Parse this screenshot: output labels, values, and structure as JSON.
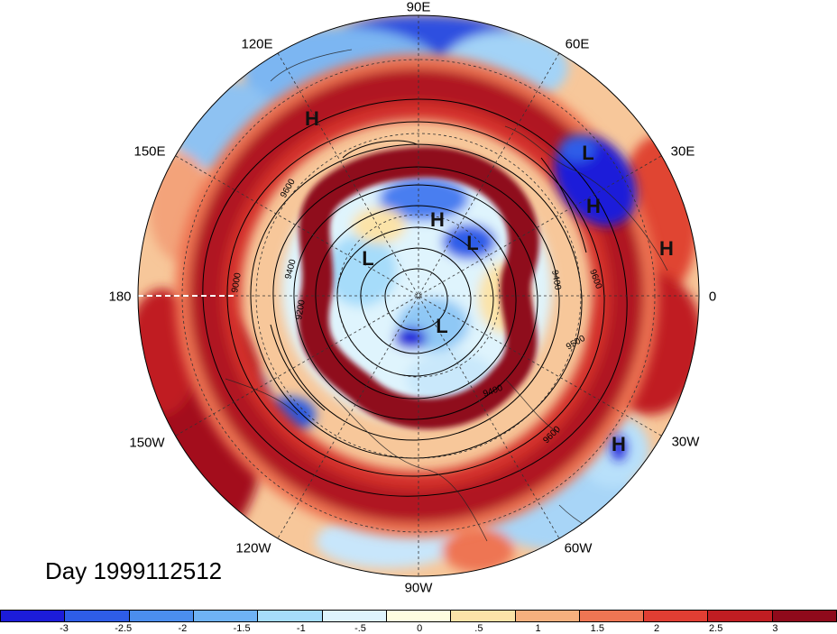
{
  "longitude_labels": {
    "lon_90e": "90E",
    "lon_60e": "60E",
    "lon_30e": "30E",
    "lon_0": "0",
    "lon_30w": "30W",
    "lon_60w": "60W",
    "lon_90w": "90W",
    "lon_120w": "120W",
    "lon_150w": "150W",
    "lon_180": "180",
    "lon_150e": "150E",
    "lon_120e": "120E"
  },
  "pressure_systems": {
    "h1": "H",
    "h2": "H",
    "h3": "H",
    "h4": "H",
    "h5": "H",
    "l1": "L",
    "l2": "L",
    "l3": "L",
    "l4": "L"
  },
  "contour_labels": {
    "c9600a": "9600",
    "c9400a": "9400",
    "c9200": "9200",
    "c9000": "9000",
    "c9600b": "9600",
    "c9400b": "9400",
    "c9500": "9500",
    "c9400c": "9400",
    "c9600c": "9600"
  },
  "day_label": "Day 1999112512",
  "colorbar": {
    "ticks": [
      "-3",
      "-2.5",
      "-2",
      "-1.5",
      "-1",
      "-.5",
      "0",
      ".5",
      "1",
      "1.5",
      "2",
      "2.5",
      "3"
    ],
    "colors": [
      "#1c1cd9",
      "#2e5de8",
      "#4b8eee",
      "#6fb2f5",
      "#a6dcfa",
      "#dff4fd",
      "#fffde0",
      "#fbe3a8",
      "#f6b07e",
      "#ee7553",
      "#e03e33",
      "#c01d22",
      "#8f0a1b"
    ]
  }
}
